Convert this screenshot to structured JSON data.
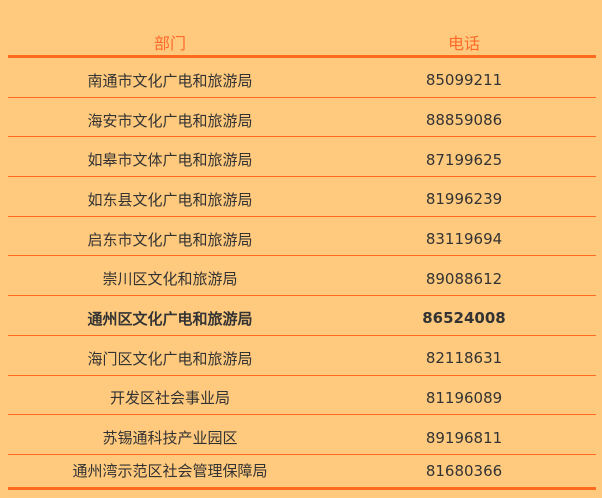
{
  "colors": {
    "background": "#ffca7e",
    "accent": "#ff6a1f",
    "text": "#333333"
  },
  "table": {
    "headers": [
      "部门",
      "电话"
    ],
    "rows": [
      {
        "dept": "南通市文化广电和旅游局",
        "phone": "85099211"
      },
      {
        "dept": "海安市文化广电和旅游局",
        "phone": "88859086"
      },
      {
        "dept": "如皋市文体广电和旅游局",
        "phone": "87199625"
      },
      {
        "dept": "如东县文化广电和旅游局",
        "phone": "81996239"
      },
      {
        "dept": "启东市文化广电和旅游局",
        "phone": "83119694"
      },
      {
        "dept": "崇川区文化和旅游局",
        "phone": "89088612"
      },
      {
        "dept": "通州区文化广电和旅游局",
        "phone": "86524008",
        "bold": true
      },
      {
        "dept": "海门区文化广电和旅游局",
        "phone": "82118631"
      },
      {
        "dept": "开发区社会事业局",
        "phone": "81196089"
      },
      {
        "dept": "苏锡通科技产业园区",
        "phone": "89196811"
      },
      {
        "dept": "通州湾示范区社会管理保障局",
        "phone": "81680366"
      }
    ]
  }
}
